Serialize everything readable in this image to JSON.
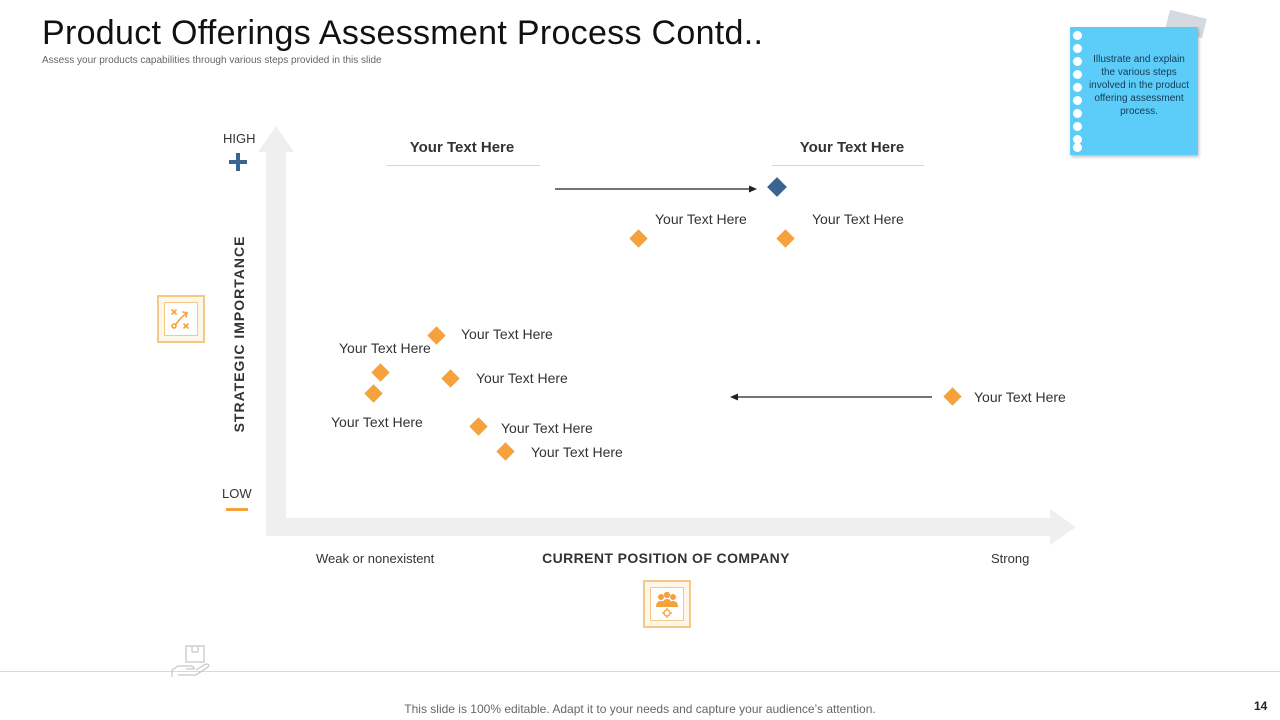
{
  "title": "Product Offerings Assessment Process Contd..",
  "subtitle": "Assess your products capabilities through various steps provided in this slide",
  "note": {
    "text": "Illustrate and explain the  various steps involved in the product offering assessment process."
  },
  "axis": {
    "y_label": "STRATEGIC IMPORTANCE",
    "y_high": "HIGH",
    "y_low": "LOW",
    "x_label": "CURRENT POSITION OF COMPANY",
    "x_low": "Weak or nonexistent",
    "x_high": "Strong"
  },
  "headers": [
    "Your Text Here",
    "Your Text Here"
  ],
  "point_labels": [
    "Your Text Here",
    "Your Text Here",
    "Your Text Here",
    "Your Text Here",
    "Your Text Here",
    "Your Text Here",
    "Your Text Here",
    "Your Text Here",
    "Your Text Here"
  ],
  "colors": {
    "accent_orange": "#f5a23c",
    "accent_blue": "#3a6591",
    "axis_gray": "#efefef",
    "note_blue": "#5ccdf8",
    "icon_border": "#f5c88a"
  },
  "icons": {
    "high": "plus-icon",
    "low": "minus-icon",
    "y_axis": "strategy-icon",
    "x_axis": "team-icon",
    "footer": "hand-box-icon"
  },
  "footer": "This slide is 100% editable. Adapt it to your needs and capture your audience’s attention.",
  "page_number": "14"
}
